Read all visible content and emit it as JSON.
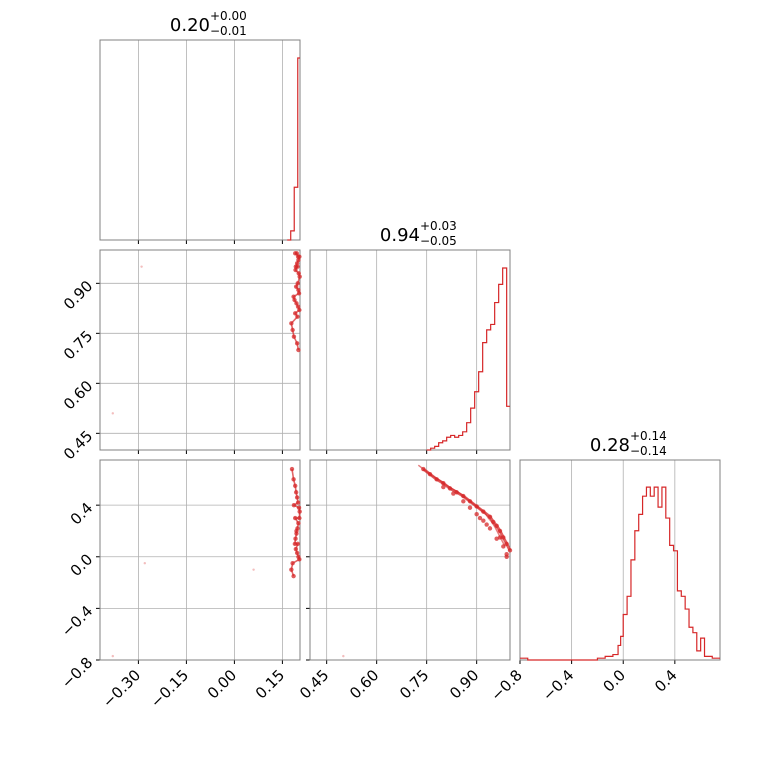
{
  "chart_data": {
    "type": "corner",
    "color": "#d62728",
    "parameters": [
      {
        "title": {
          "main": "0.20",
          "sup": "+0.00",
          "sub": "−0.01"
        },
        "range": [
          -0.42,
          0.205
        ],
        "ticks": [
          {
            "v": -0.3,
            "label": "−0.30"
          },
          {
            "v": -0.15,
            "label": "−0.15"
          },
          {
            "v": 0.0,
            "label": "0.00"
          },
          {
            "v": 0.15,
            "label": "0.15"
          }
        ]
      },
      {
        "title": {
          "main": "0.94",
          "sup": "+0.03",
          "sub": "−0.05"
        },
        "range": [
          0.4,
          1.0
        ],
        "ticks": [
          {
            "v": 0.45,
            "label": "0.45"
          },
          {
            "v": 0.6,
            "label": "0.60"
          },
          {
            "v": 0.75,
            "label": "0.75"
          },
          {
            "v": 0.9,
            "label": "0.90"
          }
        ]
      },
      {
        "title": {
          "main": "0.28",
          "sup": "+0.14",
          "sub": "−0.14"
        },
        "range": [
          -0.8,
          0.75
        ],
        "ticks": [
          {
            "v": -0.8,
            "label": "−0.8"
          },
          {
            "v": -0.4,
            "label": "−0.4"
          },
          {
            "v": 0.0,
            "label": "0.0"
          },
          {
            "v": 0.4,
            "label": "0.4"
          }
        ]
      }
    ],
    "histograms": [
      {
        "param": 0,
        "edges": [
          0.165,
          0.176,
          0.187,
          0.198,
          0.205
        ],
        "counts": [
          0.0,
          0.05,
          0.29,
          1.0
        ]
      },
      {
        "param": 1,
        "edges": [
          0.75,
          0.762,
          0.774,
          0.786,
          0.798,
          0.81,
          0.822,
          0.834,
          0.846,
          0.858,
          0.87,
          0.882,
          0.894,
          0.906,
          0.918,
          0.93,
          0.942,
          0.954,
          0.966,
          0.978,
          0.99,
          1.0
        ],
        "counts": [
          0.0,
          0.01,
          0.02,
          0.04,
          0.05,
          0.07,
          0.08,
          0.07,
          0.08,
          0.1,
          0.15,
          0.23,
          0.32,
          0.43,
          0.59,
          0.66,
          0.69,
          0.81,
          0.91,
          1.0,
          0.24
        ]
      },
      {
        "param": 2,
        "edges": [
          -0.8,
          -0.74,
          -0.2,
          -0.14,
          -0.08,
          -0.04,
          -0.02,
          0.0,
          0.03,
          0.06,
          0.09,
          0.12,
          0.15,
          0.18,
          0.21,
          0.24,
          0.27,
          0.3,
          0.33,
          0.36,
          0.39,
          0.42,
          0.45,
          0.48,
          0.51,
          0.54,
          0.57,
          0.6,
          0.63,
          0.66,
          0.69,
          0.75
        ],
        "counts": [
          0.01,
          0.0,
          0.01,
          0.02,
          0.03,
          0.08,
          0.13,
          0.25,
          0.35,
          0.55,
          0.71,
          0.8,
          0.9,
          0.95,
          0.9,
          0.95,
          0.84,
          0.95,
          0.78,
          0.63,
          0.6,
          0.38,
          0.35,
          0.28,
          0.18,
          0.15,
          0.05,
          0.12,
          0.02,
          0.02,
          0.01
        ]
      }
    ],
    "pairs": [
      {
        "x_param": 0,
        "y_param": 1,
        "x": [
          0.19,
          0.195,
          0.199,
          0.203,
          0.2,
          0.196,
          0.192,
          0.191,
          0.197,
          0.201,
          0.204,
          0.198,
          0.193,
          0.2,
          0.202,
          0.185,
          0.188,
          0.194,
          0.199,
          0.203,
          0.19,
          0.197,
          0.178,
          0.182,
          0.186,
          0.196,
          0.2,
          -0.38,
          -0.29
        ],
        "y": [
          0.99,
          0.99,
          0.98,
          0.98,
          0.97,
          0.96,
          0.95,
          0.94,
          0.95,
          0.93,
          0.92,
          0.9,
          0.89,
          0.88,
          0.87,
          0.86,
          0.85,
          0.84,
          0.83,
          0.82,
          0.81,
          0.8,
          0.78,
          0.76,
          0.74,
          0.72,
          0.7,
          0.51,
          0.95
        ]
      },
      {
        "x_param": 0,
        "y_param": 2,
        "x": [
          0.18,
          0.185,
          0.19,
          0.193,
          0.196,
          0.199,
          0.202,
          0.204,
          0.203,
          0.2,
          0.197,
          0.194,
          0.191,
          0.189,
          0.192,
          0.196,
          0.2,
          0.203,
          0.198,
          0.194,
          0.19,
          0.186,
          0.182,
          0.178,
          0.185,
          -0.38,
          -0.28,
          0.06
        ],
        "y": [
          0.68,
          0.6,
          0.55,
          0.5,
          0.46,
          0.42,
          0.38,
          0.35,
          0.3,
          0.26,
          0.22,
          0.18,
          0.14,
          0.1,
          0.06,
          0.03,
          0.0,
          -0.02,
          0.1,
          0.2,
          0.3,
          0.4,
          -0.05,
          -0.1,
          -0.15,
          -0.77,
          -0.05,
          -0.1
        ]
      },
      {
        "x_param": 1,
        "y_param": 2,
        "x": [
          0.74,
          0.76,
          0.78,
          0.8,
          0.82,
          0.84,
          0.86,
          0.88,
          0.9,
          0.92,
          0.94,
          0.95,
          0.96,
          0.97,
          0.98,
          0.99,
          1.0,
          0.99,
          0.98,
          0.96,
          0.94,
          0.92,
          0.9,
          0.88,
          0.86,
          0.83,
          0.8,
          0.91,
          0.93,
          0.97,
          0.99,
          0.5
        ],
        "y": [
          0.68,
          0.64,
          0.6,
          0.57,
          0.53,
          0.5,
          0.47,
          0.43,
          0.39,
          0.35,
          0.31,
          0.27,
          0.24,
          0.2,
          0.15,
          0.1,
          0.05,
          0.02,
          0.08,
          0.14,
          0.22,
          0.28,
          0.33,
          0.38,
          0.43,
          0.49,
          0.54,
          0.3,
          0.25,
          0.15,
          0.0,
          -0.77
        ]
      }
    ]
  }
}
